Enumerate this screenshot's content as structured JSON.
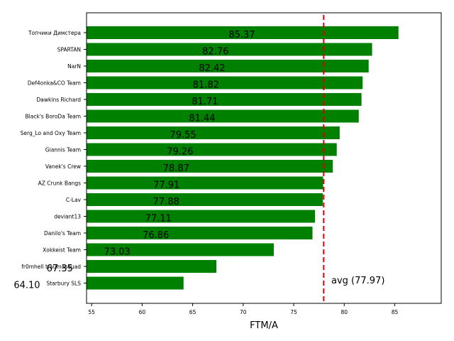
{
  "chart_data": {
    "type": "bar",
    "orientation": "horizontal",
    "title": "",
    "xlabel": "FTM/A",
    "ylabel": "",
    "xlim": [
      54.5,
      89.6
    ],
    "xticks": [
      55,
      60,
      65,
      70,
      75,
      80,
      85
    ],
    "grid": false,
    "bar_color": "#008000",
    "categories": [
      "Топчики Димстера",
      "SPARTAN",
      "NarN",
      "Def4onka&CO Team",
      "Dawkins Richard",
      "Black's BoroDa Team",
      "Serg_Lo and Oxy Team",
      "Giannis Team",
      "Vanek's Crew",
      "AZ Crunk Bangs",
      "C-Lav",
      "deviant13",
      "Danilo's Team",
      "Xokkeist Team",
      "fr0mhell traumasquad",
      "Starbury SLS"
    ],
    "values": [
      85.37,
      82.76,
      82.42,
      81.82,
      81.71,
      81.44,
      79.55,
      79.26,
      78.87,
      77.91,
      77.88,
      77.11,
      76.86,
      73.03,
      67.35,
      64.1
    ],
    "value_labels": [
      "85.37",
      "82.76",
      "82.42",
      "81.82",
      "81.71",
      "81.44",
      "79.55",
      "79.26",
      "78.87",
      "77.91",
      "77.88",
      "77.11",
      "76.86",
      "73.03",
      "67.35",
      "64.10"
    ],
    "reference_line": {
      "value": 77.97,
      "label": "avg (77.97)",
      "color": "#dd0000",
      "style": "dashed"
    }
  }
}
